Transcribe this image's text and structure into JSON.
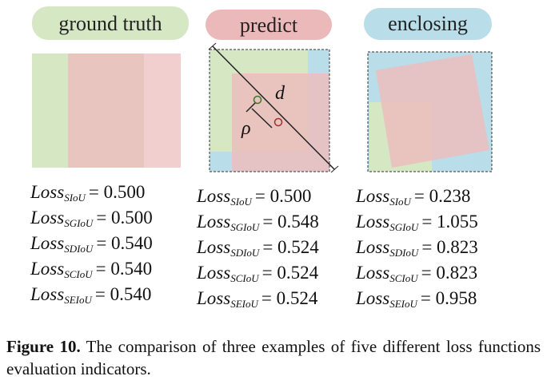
{
  "panels": [
    {
      "label": "ground truth",
      "losses": [
        {
          "term": "Loss",
          "subscript": "SIoU",
          "value": "= 0.500"
        },
        {
          "term": "Loss",
          "subscript": "SGIoU",
          "value": "= 0.500"
        },
        {
          "term": "Loss",
          "subscript": "SDIoU",
          "value": "= 0.540"
        },
        {
          "term": "Loss",
          "subscript": "SCIoU",
          "value": "= 0.540"
        },
        {
          "term": "Loss",
          "subscript": "SEIoU",
          "value": "= 0.540"
        }
      ]
    },
    {
      "label": "predict",
      "losses": [
        {
          "term": "Loss",
          "subscript": "SIoU",
          "value": "= 0.500"
        },
        {
          "term": "Loss",
          "subscript": "SGIoU",
          "value": "= 0.548"
        },
        {
          "term": "Loss",
          "subscript": "SDIoU",
          "value": "= 0.524"
        },
        {
          "term": "Loss",
          "subscript": "SCIoU",
          "value": "= 0.524"
        },
        {
          "term": "Loss",
          "subscript": "SEIoU",
          "value": "= 0.524"
        }
      ]
    },
    {
      "label": "enclosing",
      "losses": [
        {
          "term": "Loss",
          "subscript": "SIoU",
          "value": "= 0.238"
        },
        {
          "term": "Loss",
          "subscript": "SGIoU",
          "value": "= 1.055"
        },
        {
          "term": "Loss",
          "subscript": "SDIoU",
          "value": "= 0.823"
        },
        {
          "term": "Loss",
          "subscript": "SCIoU",
          "value": "= 0.823"
        },
        {
          "term": "Loss",
          "subscript": "SEIoU",
          "value": "= 0.958"
        }
      ]
    }
  ],
  "diagram_labels": {
    "distance": "d",
    "rho": "ρ"
  },
  "caption": {
    "label": "Figure 10.",
    "text": "The comparison of three examples of five different loss functions evaluation indicators."
  }
}
